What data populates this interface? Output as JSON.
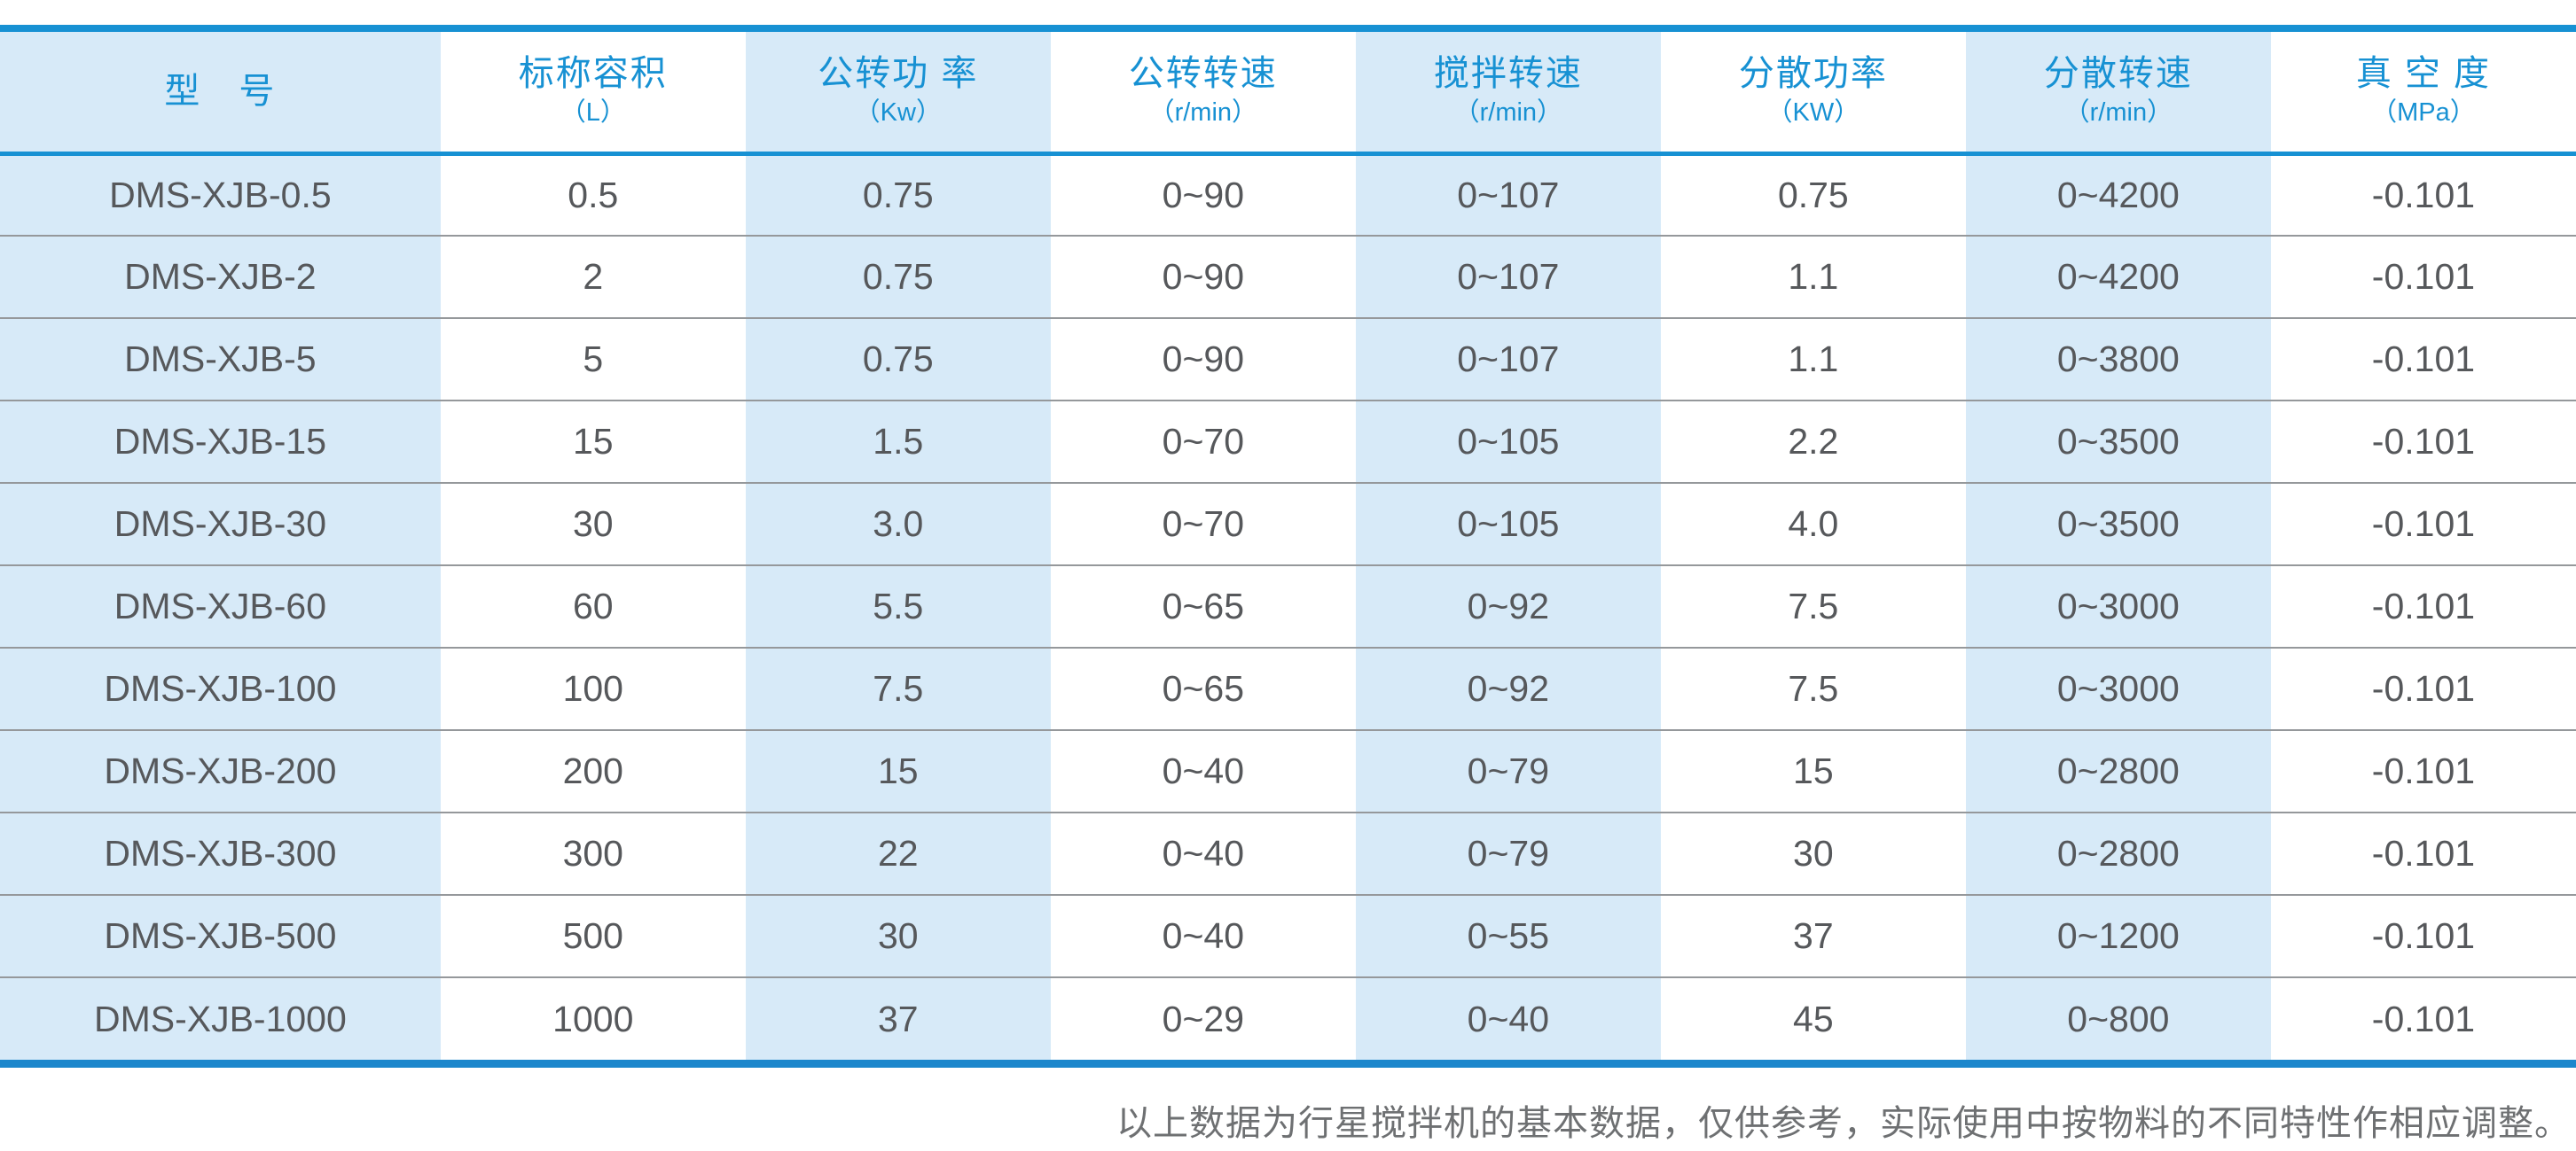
{
  "table": {
    "columns": [
      {
        "label": "型　号",
        "unit": ""
      },
      {
        "label": "标称容积",
        "unit": "（L）"
      },
      {
        "label": "公转功 率",
        "unit": "（Kw）"
      },
      {
        "label": "公转转速",
        "unit": "（r/min）"
      },
      {
        "label": "搅拌转速",
        "unit": "（r/min）"
      },
      {
        "label": "分散功率",
        "unit": "（KW）"
      },
      {
        "label": "分散转速",
        "unit": "（r/min）"
      },
      {
        "label": "真 空 度",
        "unit": "（MPa）"
      }
    ],
    "rows": [
      [
        "DMS-XJB-0.5",
        "0.5",
        "0.75",
        "0~90",
        "0~107",
        "0.75",
        "0~4200",
        "-0.101"
      ],
      [
        "DMS-XJB-2",
        "2",
        "0.75",
        "0~90",
        "0~107",
        "1.1",
        "0~4200",
        "-0.101"
      ],
      [
        "DMS-XJB-5",
        "5",
        "0.75",
        "0~90",
        "0~107",
        "1.1",
        "0~3800",
        "-0.101"
      ],
      [
        "DMS-XJB-15",
        "15",
        "1.5",
        "0~70",
        "0~105",
        "2.2",
        "0~3500",
        "-0.101"
      ],
      [
        "DMS-XJB-30",
        "30",
        "3.0",
        "0~70",
        "0~105",
        "4.0",
        "0~3500",
        "-0.101"
      ],
      [
        "DMS-XJB-60",
        "60",
        "5.5",
        "0~65",
        "0~92",
        "7.5",
        "0~3000",
        "-0.101"
      ],
      [
        "DMS-XJB-100",
        "100",
        "7.5",
        "0~65",
        "0~92",
        "7.5",
        "0~3000",
        "-0.101"
      ],
      [
        "DMS-XJB-200",
        "200",
        "15",
        "0~40",
        "0~79",
        "15",
        "0~2800",
        "-0.101"
      ],
      [
        "DMS-XJB-300",
        "300",
        "22",
        "0~40",
        "0~79",
        "30",
        "0~2800",
        "-0.101"
      ],
      [
        "DMS-XJB-500",
        "500",
        "30",
        "0~40",
        "0~55",
        "37",
        "0~1200",
        "-0.101"
      ],
      [
        "DMS-XJB-1000",
        "1000",
        "37",
        "0~29",
        "0~40",
        "45",
        "0~800",
        "-0.101"
      ]
    ]
  },
  "footer": {
    "note": "以上数据为行星搅拌机的基本数据，仅供参考，实际使用中按物料的不同特性作相应调整。"
  },
  "colors": {
    "accent_blue": "#1791d3",
    "column_light_blue": "#d7eaf8",
    "data_text_gray": "#56585b",
    "row_separator_gray": "#95989b",
    "footnote_gray": "#6e7072"
  }
}
